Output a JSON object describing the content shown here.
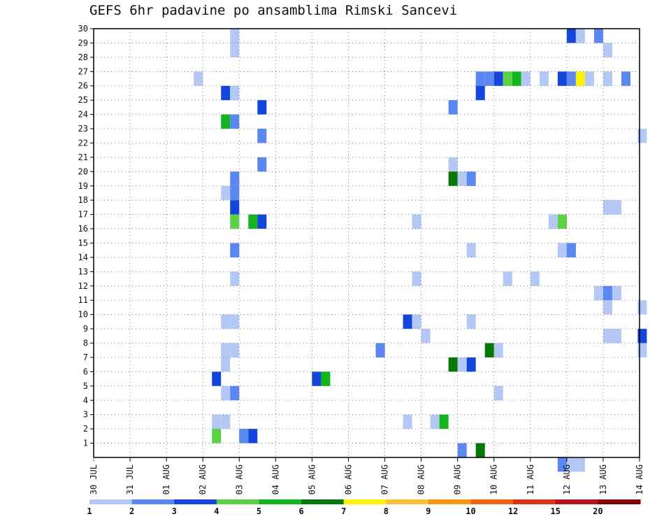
{
  "chart_data": {
    "type": "heatmap",
    "title": "GEFS 6hr padavine po ansamblima Rimski Sancevi",
    "x_tick_labels": [
      "30 JUL",
      "31 JUL",
      "01 AUG",
      "02 AUG",
      "03 AUG",
      "04 AUG",
      "05 AUG",
      "06 AUG",
      "07 AUG",
      "08 AUG",
      "09 AUG",
      "10 AUG",
      "11 AUG",
      "12 AUG",
      "13 AUG",
      "14 AUG"
    ],
    "x_units": "days",
    "xlim": [
      0,
      15
    ],
    "y_tick_labels": [
      "1",
      "2",
      "3",
      "4",
      "5",
      "6",
      "7",
      "8",
      "9",
      "10",
      "11",
      "12",
      "13",
      "14",
      "15",
      "16",
      "17",
      "18",
      "19",
      "20",
      "21",
      "22",
      "23",
      "24",
      "25",
      "26",
      "27",
      "28",
      "29",
      "30"
    ],
    "ylim": [
      0,
      30
    ],
    "grid": true,
    "colorbar": {
      "labels": [
        "1",
        "2",
        "3",
        "4",
        "5",
        "6",
        "7",
        "8",
        "9",
        "10",
        "12",
        "15",
        "20"
      ],
      "colors": [
        "#b4c8f5",
        "#5a87f0",
        "#1446dc",
        "#5ad246",
        "#14b41e",
        "#067806",
        "#faf00a",
        "#fac03c",
        "#fa9614",
        "#f06414",
        "#dc3214",
        "#b4141e",
        "#82000a"
      ]
    },
    "cells_note": "each cell: [start_day_offset_from_30_JUL, member_row_bottom, color_bin_index]; cell width 0.25 day, height 1 member",
    "cells": [
      [
        3.75,
        29,
        0
      ],
      [
        3.75,
        28,
        0
      ],
      [
        13.0,
        29,
        2
      ],
      [
        13.25,
        29,
        0
      ],
      [
        13.75,
        29,
        1
      ],
      [
        14.0,
        28,
        0
      ],
      [
        2.75,
        26,
        0
      ],
      [
        10.5,
        26,
        1
      ],
      [
        10.75,
        26,
        1
      ],
      [
        11.0,
        26,
        2
      ],
      [
        11.25,
        26,
        3
      ],
      [
        11.5,
        26,
        4
      ],
      [
        11.75,
        26,
        0
      ],
      [
        12.25,
        26,
        0
      ],
      [
        12.75,
        26,
        2
      ],
      [
        13.0,
        26,
        1
      ],
      [
        13.25,
        26,
        6
      ],
      [
        13.5,
        26,
        0
      ],
      [
        14.0,
        26,
        0
      ],
      [
        14.5,
        26,
        1
      ],
      [
        3.5,
        25,
        2
      ],
      [
        3.75,
        25,
        0
      ],
      [
        10.5,
        25,
        2
      ],
      [
        4.5,
        24,
        2
      ],
      [
        9.75,
        24,
        1
      ],
      [
        3.5,
        23,
        4
      ],
      [
        3.75,
        23,
        1
      ],
      [
        14.95,
        22,
        0
      ],
      [
        4.5,
        22,
        1
      ],
      [
        4.5,
        20,
        1
      ],
      [
        9.75,
        20,
        0
      ],
      [
        3.75,
        19,
        1
      ],
      [
        9.75,
        19,
        5
      ],
      [
        10.0,
        19,
        0
      ],
      [
        10.25,
        19,
        1
      ],
      [
        3.5,
        18,
        0
      ],
      [
        3.75,
        18,
        1
      ],
      [
        14.0,
        17,
        0
      ],
      [
        14.25,
        17,
        0
      ],
      [
        3.75,
        17,
        2
      ],
      [
        3.75,
        16,
        3
      ],
      [
        4.25,
        16,
        4
      ],
      [
        4.5,
        16,
        2
      ],
      [
        8.75,
        16,
        0
      ],
      [
        12.5,
        16,
        0
      ],
      [
        12.75,
        16,
        3
      ],
      [
        3.75,
        14,
        1
      ],
      [
        10.25,
        14,
        0
      ],
      [
        12.75,
        14,
        0
      ],
      [
        13.0,
        14,
        1
      ],
      [
        3.75,
        12,
        0
      ],
      [
        8.75,
        12,
        0
      ],
      [
        11.25,
        12,
        0
      ],
      [
        12.0,
        12,
        0
      ],
      [
        13.75,
        11,
        0
      ],
      [
        14.0,
        11,
        1
      ],
      [
        14.25,
        11,
        0
      ],
      [
        14.0,
        10,
        0
      ],
      [
        14.95,
        10,
        0
      ],
      [
        3.5,
        9,
        0
      ],
      [
        3.75,
        9,
        0
      ],
      [
        8.5,
        9,
        2
      ],
      [
        8.75,
        9,
        0
      ],
      [
        10.25,
        9,
        0
      ],
      [
        9.0,
        8,
        0
      ],
      [
        14.0,
        8,
        0
      ],
      [
        14.25,
        8,
        0
      ],
      [
        14.95,
        8,
        2
      ],
      [
        3.5,
        7,
        0
      ],
      [
        3.75,
        7,
        0
      ],
      [
        7.75,
        7,
        1
      ],
      [
        10.75,
        7,
        5
      ],
      [
        11.0,
        7,
        0
      ],
      [
        14.95,
        7,
        0
      ],
      [
        3.5,
        6,
        0
      ],
      [
        9.75,
        6,
        5
      ],
      [
        10.0,
        6,
        0
      ],
      [
        10.25,
        6,
        2
      ],
      [
        3.25,
        5,
        2
      ],
      [
        6.0,
        5,
        2
      ],
      [
        6.25,
        5,
        4
      ],
      [
        3.5,
        4,
        0
      ],
      [
        3.75,
        4,
        1
      ],
      [
        11.0,
        4,
        0
      ],
      [
        3.25,
        2,
        0
      ],
      [
        3.5,
        2,
        0
      ],
      [
        8.5,
        2,
        0
      ],
      [
        9.25,
        2,
        0
      ],
      [
        9.5,
        2,
        4
      ],
      [
        3.25,
        1,
        3
      ],
      [
        4.0,
        1,
        1
      ],
      [
        4.25,
        1,
        2
      ],
      [
        10.0,
        0,
        1
      ],
      [
        10.5,
        0,
        5
      ],
      [
        12.75,
        -1,
        1
      ],
      [
        13.0,
        -1,
        0
      ],
      [
        13.25,
        -1,
        0
      ]
    ]
  }
}
